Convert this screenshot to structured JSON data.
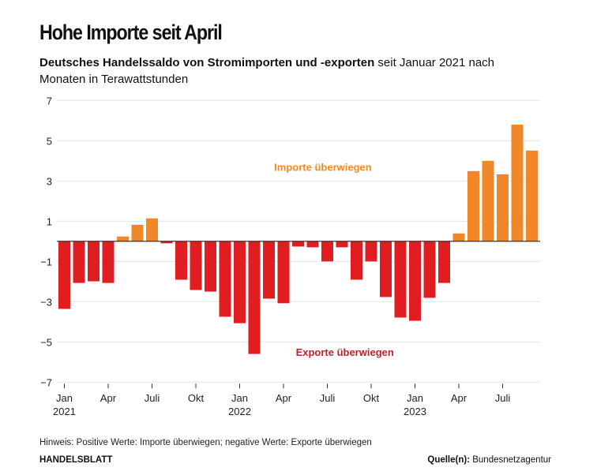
{
  "title": "Hohe Importe seit April",
  "subtitle_bold": "Deutsches Handelssaldo von Stromimporten und -exporten",
  "subtitle_rest": " seit Januar 2021 nach Monaten in Terawattstunden",
  "note": "Hinweis: Positive Werte: Importe überwiegen; negative Werte: Exporte überwiegen",
  "brand": "HANDELSBLATT",
  "source_label": "Quelle(n):",
  "source_value": " Bundesnetzagentur",
  "colors": {
    "positive": "#f0882a",
    "negative": "#e01e22",
    "import_label": "#f0882a",
    "export_label": "#b5262c"
  },
  "chart_data": {
    "type": "bar",
    "title": "Hohe Importe seit April",
    "ylim": [
      -7,
      7
    ],
    "yticks": [
      7,
      5,
      3,
      1,
      -1,
      -3,
      -5,
      -7
    ],
    "ytick_labels": [
      "7",
      "5",
      "3",
      "1",
      "−1",
      "−3",
      "−5",
      "−7"
    ],
    "grid": true,
    "categories": [
      "2021-01",
      "2021-02",
      "2021-03",
      "2021-04",
      "2021-05",
      "2021-06",
      "2021-07",
      "2021-08",
      "2021-09",
      "2021-10",
      "2021-11",
      "2021-12",
      "2022-01",
      "2022-02",
      "2022-03",
      "2022-04",
      "2022-05",
      "2022-06",
      "2022-07",
      "2022-08",
      "2022-09",
      "2022-10",
      "2022-11",
      "2022-12",
      "2023-01",
      "2023-02",
      "2023-03",
      "2023-04",
      "2023-05",
      "2023-06",
      "2023-07",
      "2023-08",
      "2023-09"
    ],
    "values": [
      -3.36,
      -2.07,
      -1.99,
      -2.07,
      0.24,
      0.82,
      1.14,
      -0.1,
      -1.91,
      -2.42,
      -2.5,
      -3.75,
      -4.07,
      -5.6,
      -2.85,
      -3.08,
      -0.26,
      -0.3,
      -1.0,
      -0.3,
      -1.91,
      -1.0,
      -2.77,
      -3.79,
      -3.95,
      -2.81,
      -2.07,
      0.39,
      3.49,
      4.0,
      3.33,
      5.8,
      4.51
    ],
    "xticks": [
      {
        "index": 0,
        "label": "Jan",
        "year": "2021"
      },
      {
        "index": 3,
        "label": "Apr"
      },
      {
        "index": 6,
        "label": "Juli"
      },
      {
        "index": 9,
        "label": "Okt"
      },
      {
        "index": 12,
        "label": "Jan",
        "year": "2022"
      },
      {
        "index": 15,
        "label": "Apr"
      },
      {
        "index": 18,
        "label": "Juli"
      },
      {
        "index": 21,
        "label": "Okt"
      },
      {
        "index": 24,
        "label": "Jan",
        "year": "2023"
      },
      {
        "index": 27,
        "label": "Apr"
      },
      {
        "index": 30,
        "label": "Juli"
      }
    ],
    "annotations": [
      {
        "text": "Importe überwiegen",
        "value": 3.7,
        "index": 17.7,
        "kind": "import"
      },
      {
        "text": "Exporte überwiegen",
        "value": -5.5,
        "index": 19.2,
        "kind": "export"
      }
    ]
  }
}
